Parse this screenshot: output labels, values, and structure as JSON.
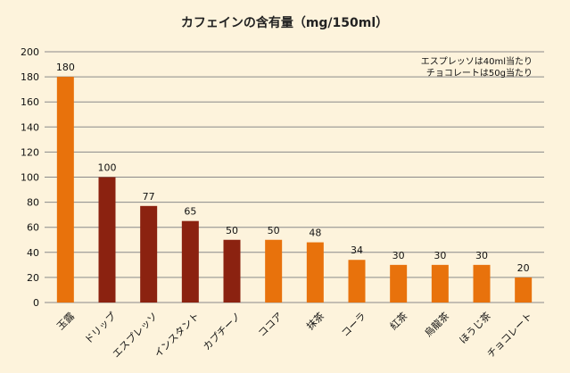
{
  "chart_data": {
    "type": "bar",
    "title": "カフェインの含有量（mg/150ml）",
    "notes": [
      "エスプレッソは40ml当たり",
      "チョコレートは50g当たり"
    ],
    "categories": [
      "玉露",
      "ドリップ",
      "エスプレッソ",
      "インスタント",
      "カプチーノ",
      "ココア",
      "抹茶",
      "コーラ",
      "紅茶",
      "烏龍茶",
      "ほうじ茶",
      "チョコレート"
    ],
    "values": [
      180,
      100,
      77,
      65,
      50,
      50,
      48,
      34,
      30,
      30,
      30,
      20
    ],
    "bar_colors": [
      "#e8720c",
      "#8b2210",
      "#8b2210",
      "#8b2210",
      "#8b2210",
      "#e8720c",
      "#e8720c",
      "#e8720c",
      "#e8720c",
      "#e8720c",
      "#e8720c",
      "#e8720c"
    ],
    "ylim": [
      0,
      200
    ],
    "yticks": [
      0,
      20,
      40,
      60,
      80,
      100,
      120,
      140,
      160,
      180,
      200
    ],
    "grid": true,
    "data_labels": true,
    "legend": false,
    "xlabel": "",
    "ylabel": ""
  },
  "colors": {
    "background": "#fdf3dc",
    "grid": "#8a8a8a",
    "accent_orange": "#e8720c",
    "accent_brown": "#8b2210"
  }
}
